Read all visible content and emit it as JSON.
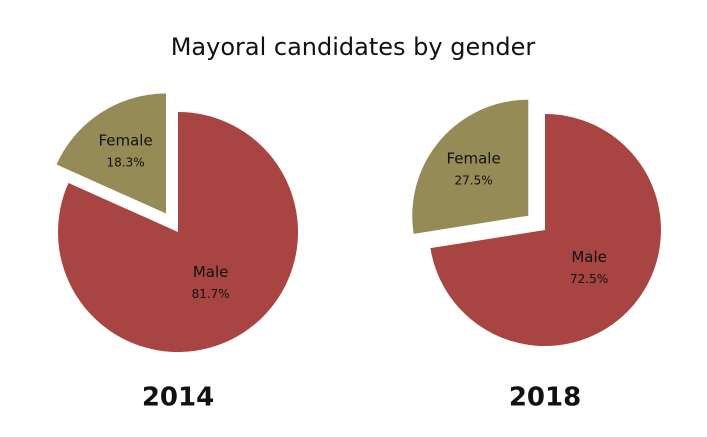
{
  "title": "Mayoral candidates by gender",
  "chart_data": [
    {
      "type": "pie",
      "title": "2014",
      "categories": [
        "Male",
        "Female"
      ],
      "values": [
        81.7,
        18.3
      ],
      "value_labels": [
        "81.7%",
        "18.3%"
      ],
      "colors": [
        "#a84442",
        "#958b56"
      ],
      "exploded": [
        false,
        true
      ]
    },
    {
      "type": "pie",
      "title": "2018",
      "categories": [
        "Male",
        "Female"
      ],
      "values": [
        72.5,
        27.5
      ],
      "value_labels": [
        "72.5%",
        "27.5%"
      ],
      "colors": [
        "#a84442",
        "#958b56"
      ],
      "exploded": [
        false,
        true
      ]
    }
  ]
}
